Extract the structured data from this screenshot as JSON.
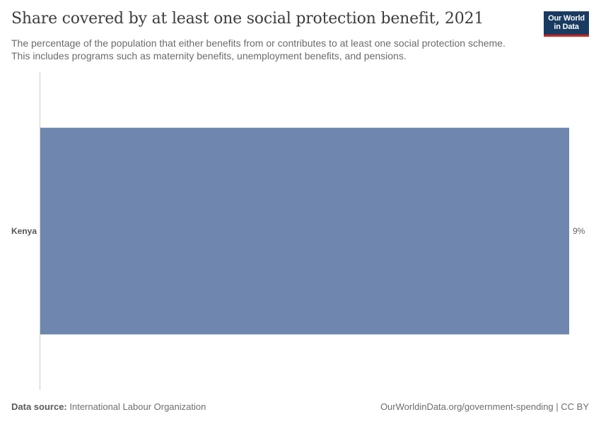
{
  "header": {
    "title": "Share covered by at least one social protection benefit, 2021",
    "subtitle": "The percentage of the population that either benefits from or contributes to at least one social protection scheme. This includes programs such as maternity benefits, unemployment benefits, and pensions."
  },
  "logo": {
    "line1": "Our World",
    "line2": "in Data"
  },
  "chart_data": {
    "type": "bar",
    "orientation": "horizontal",
    "title": "Share covered by at least one social protection benefit, 2021",
    "categories": [
      "Kenya"
    ],
    "values": [
      9
    ],
    "value_labels": [
      "9%"
    ],
    "unit": "%",
    "xlim": [
      0,
      9
    ],
    "xlabel": "",
    "ylabel": "",
    "grid": false,
    "bar_color": "#6f87ae"
  },
  "footer": {
    "source_label": "Data source:",
    "source_value": "International Labour Organization",
    "url_text": "OurWorldinData.org/government-spending | CC BY"
  },
  "colors": {
    "title": "#3d3d3d",
    "logo_bg": "#1a3b61",
    "logo_accent": "#ce261e",
    "axis": "#cccccc"
  }
}
